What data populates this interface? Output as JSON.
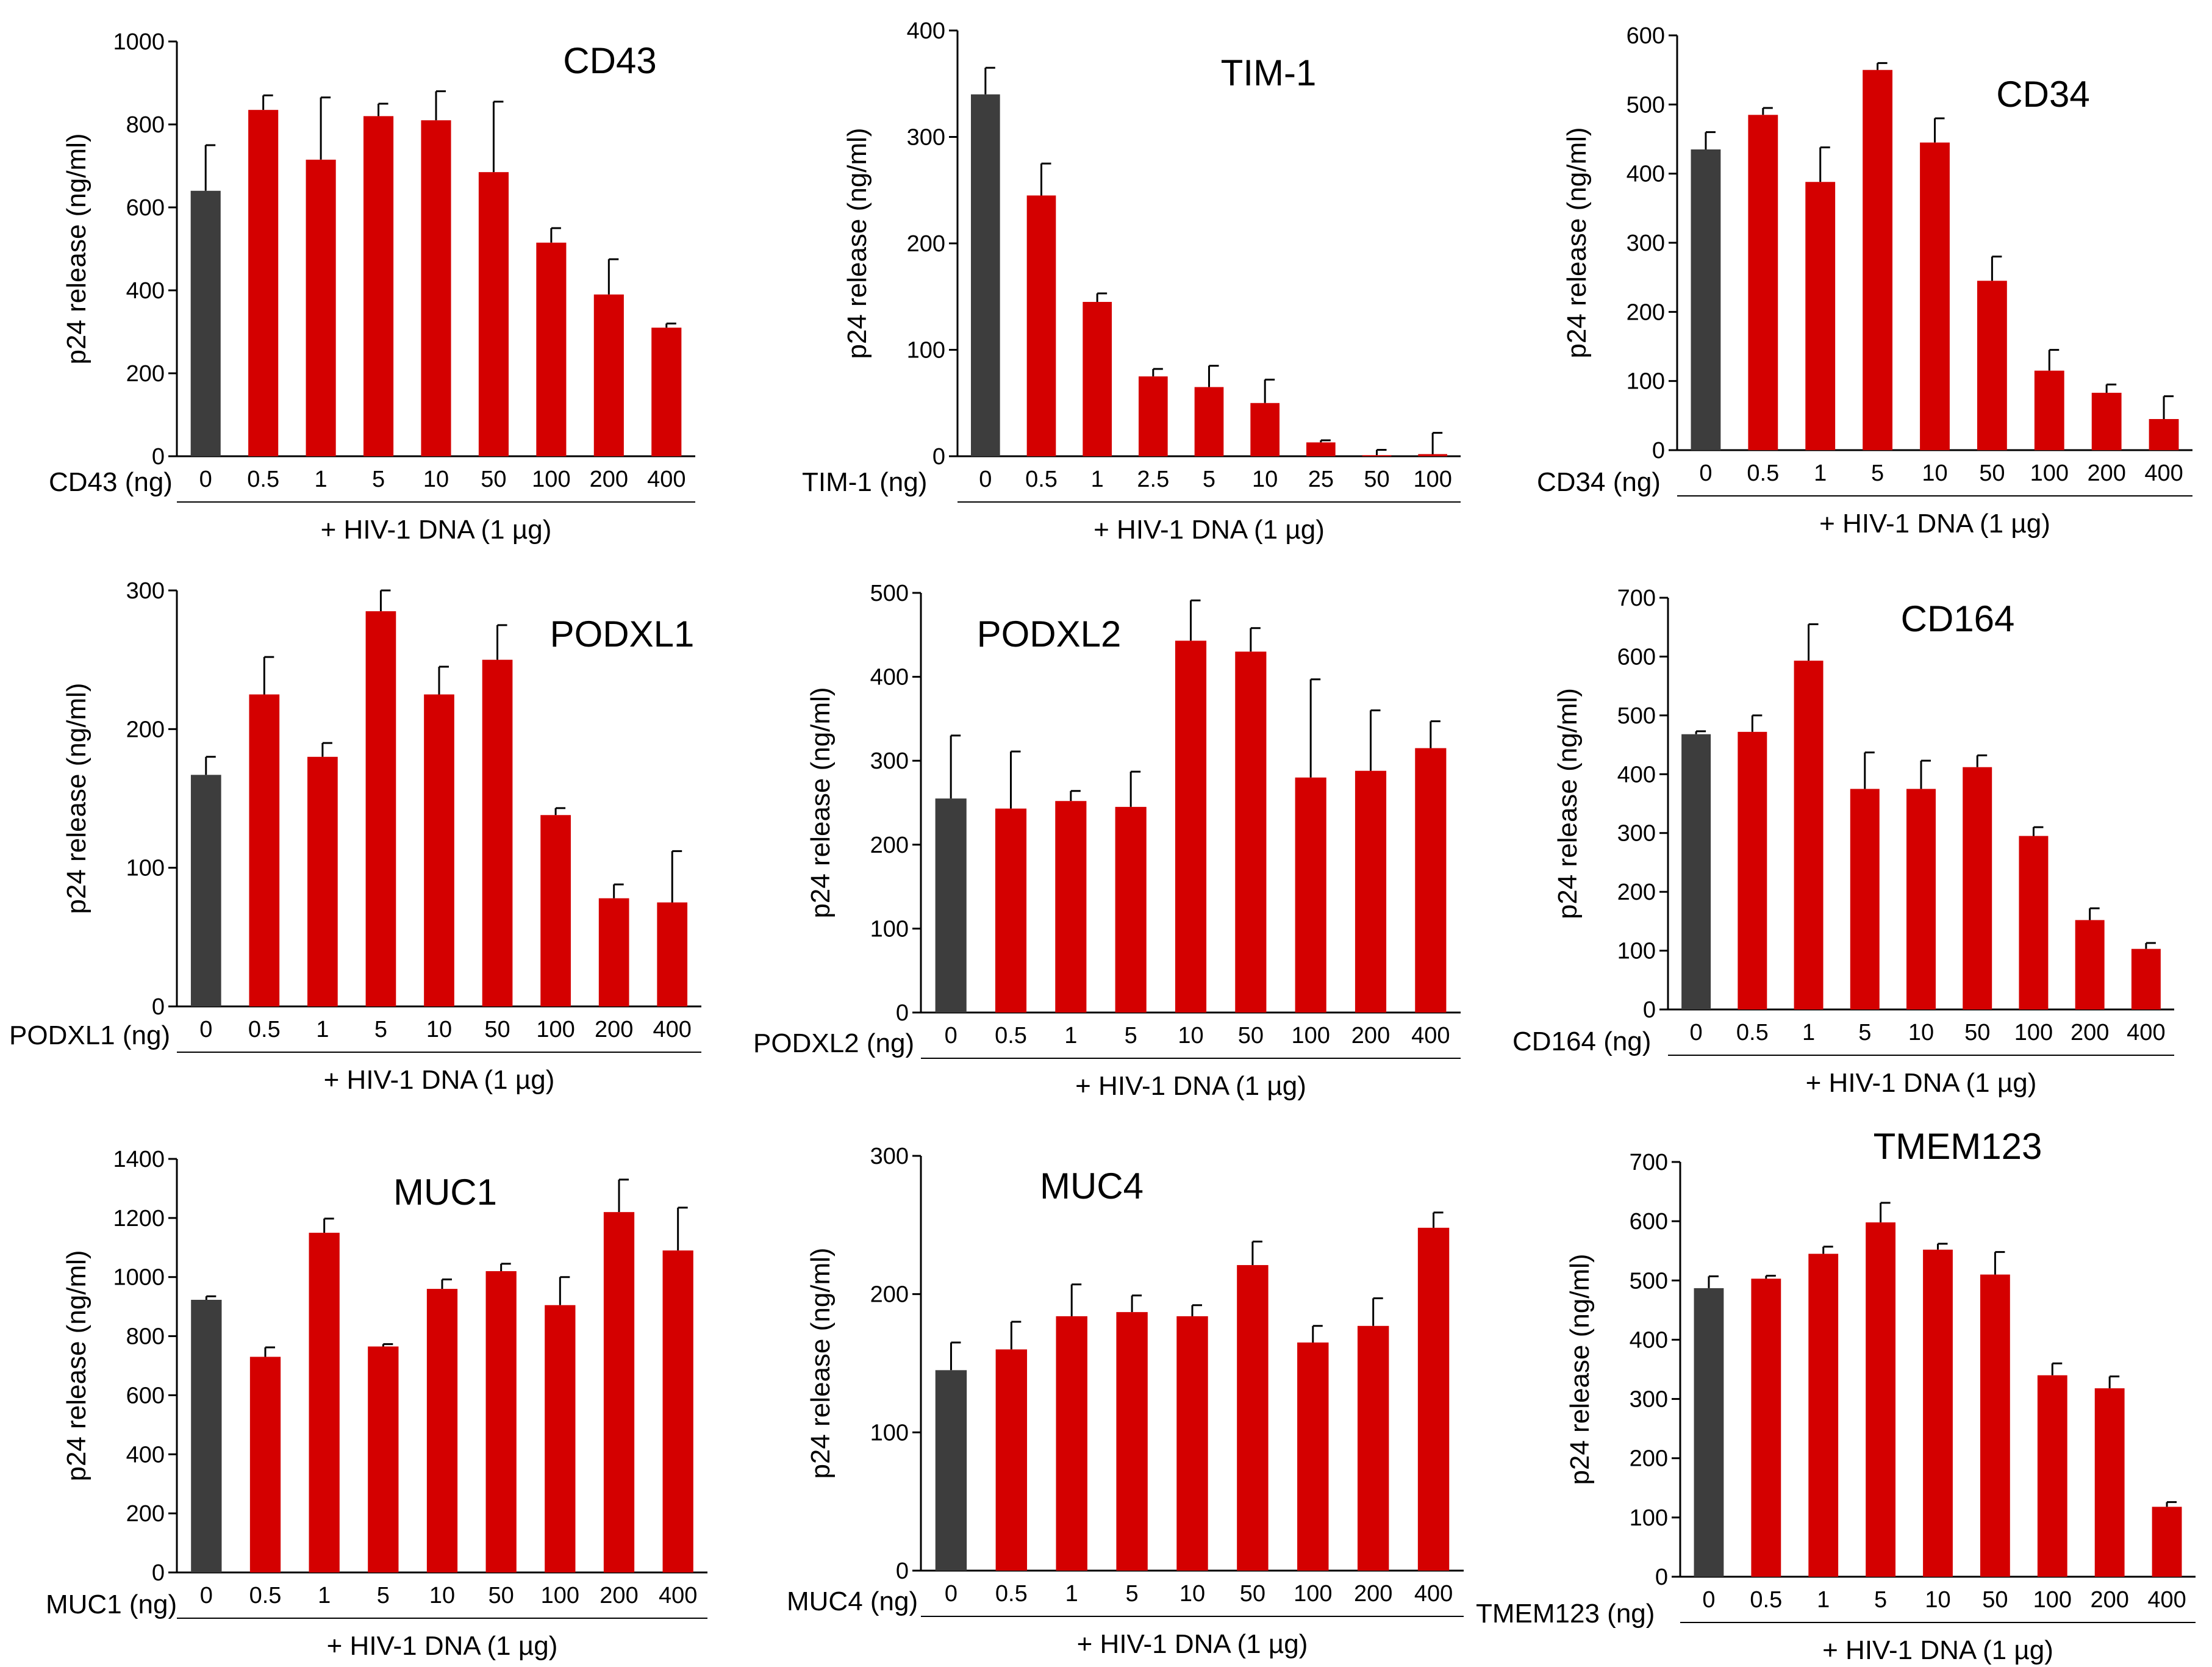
{
  "colors": {
    "control": "#3d3d3d",
    "treated": "#d40000",
    "axis": "#000000"
  },
  "chart_data": [
    {
      "type": "bar",
      "title": "CD43",
      "xlabel": "CD43 (ng)",
      "ylabel": "p24 release (ng/ml)",
      "footnote": "+ HIV-1 DNA  (1 µg)",
      "categories": [
        "0",
        "0.5",
        "1",
        "5",
        "10",
        "50",
        "100",
        "200",
        "400"
      ],
      "values": [
        640,
        835,
        715,
        820,
        810,
        685,
        515,
        390,
        310
      ],
      "errors": [
        110,
        35,
        150,
        30,
        70,
        170,
        35,
        85,
        10
      ],
      "ylim": [
        0,
        1000
      ],
      "yticks": [
        0,
        200,
        400,
        600,
        800,
        1000
      ],
      "grid": false
    },
    {
      "type": "bar",
      "title": "TIM-1",
      "xlabel": "TIM-1 (ng)",
      "ylabel": "p24 release (ng/ml)",
      "footnote": "+ HIV-1 DNA  (1 µg)",
      "categories": [
        "0",
        "0.5",
        "1",
        "2.5",
        "5",
        "10",
        "25",
        "50",
        "100"
      ],
      "values": [
        340,
        245,
        145,
        75,
        65,
        50,
        13,
        1,
        2
      ],
      "errors": [
        25,
        30,
        8,
        7,
        20,
        22,
        2,
        5,
        20
      ],
      "ylim": [
        0,
        400
      ],
      "yticks": [
        0,
        100,
        200,
        300,
        400
      ],
      "grid": false
    },
    {
      "type": "bar",
      "title": "CD34",
      "xlabel": "CD34 (ng)",
      "ylabel": "p24 release (ng/ml)",
      "footnote": "+ HIV-1 DNA  (1 µg)",
      "categories": [
        "0",
        "0.5",
        "1",
        "5",
        "10",
        "50",
        "100",
        "200",
        "400"
      ],
      "values": [
        435,
        485,
        388,
        550,
        445,
        245,
        115,
        83,
        45
      ],
      "errors": [
        25,
        10,
        50,
        10,
        35,
        35,
        30,
        12,
        33
      ],
      "ylim": [
        0,
        600
      ],
      "yticks": [
        0,
        100,
        200,
        300,
        400,
        500,
        600
      ],
      "grid": false
    },
    {
      "type": "bar",
      "title": "PODXL1",
      "xlabel": "PODXL1 (ng)",
      "ylabel": "p24 release (ng/ml)",
      "footnote": "+ HIV-1 DNA  (1 µg)",
      "categories": [
        "0",
        "0.5",
        "1",
        "5",
        "10",
        "50",
        "100",
        "200",
        "400"
      ],
      "values": [
        167,
        225,
        180,
        285,
        225,
        250,
        138,
        78,
        75
      ],
      "errors": [
        13,
        27,
        10,
        15,
        20,
        25,
        5,
        10,
        37
      ],
      "ylim": [
        0,
        300
      ],
      "yticks": [
        0,
        100,
        200,
        300
      ],
      "grid": false
    },
    {
      "type": "bar",
      "title": "PODXL2",
      "xlabel": "PODXL2 (ng)",
      "ylabel": "p24 release (ng/ml)",
      "footnote": "+ HIV-1 DNA  (1 µg)",
      "categories": [
        "0",
        "0.5",
        "1",
        "5",
        "10",
        "50",
        "100",
        "200",
        "400"
      ],
      "values": [
        255,
        243,
        252,
        245,
        443,
        430,
        280,
        288,
        315
      ],
      "errors": [
        75,
        68,
        12,
        42,
        48,
        28,
        117,
        72,
        32
      ],
      "ylim": [
        0,
        500
      ],
      "yticks": [
        0,
        100,
        200,
        300,
        400,
        500
      ],
      "grid": false
    },
    {
      "type": "bar",
      "title": "CD164",
      "xlabel": "CD164 (ng)",
      "ylabel": "p24 release (ng/ml)",
      "footnote": "+ HIV-1 DNA  (1 µg)",
      "categories": [
        "0",
        "0.5",
        "1",
        "5",
        "10",
        "50",
        "100",
        "200",
        "400"
      ],
      "values": [
        468,
        472,
        593,
        375,
        375,
        412,
        295,
        152,
        103
      ],
      "errors": [
        5,
        28,
        62,
        62,
        48,
        20,
        15,
        20,
        10
      ],
      "ylim": [
        0,
        700
      ],
      "yticks": [
        0,
        100,
        200,
        300,
        400,
        500,
        600,
        700
      ],
      "grid": false
    },
    {
      "type": "bar",
      "title": "MUC1",
      "xlabel": "MUC1 (ng)",
      "ylabel": "p24 release (ng/ml)",
      "footnote": "+ HIV-1 DNA  (1 µg)",
      "categories": [
        "0",
        "0.5",
        "1",
        "5",
        "10",
        "50",
        "100",
        "200",
        "400"
      ],
      "values": [
        923,
        730,
        1150,
        765,
        960,
        1020,
        905,
        1220,
        1090
      ],
      "errors": [
        12,
        32,
        48,
        8,
        32,
        25,
        95,
        110,
        145
      ],
      "ylim": [
        0,
        1400
      ],
      "yticks": [
        0,
        200,
        400,
        600,
        800,
        1000,
        1200,
        1400
      ],
      "grid": false
    },
    {
      "type": "bar",
      "title": "MUC4",
      "xlabel": "MUC4 (ng)",
      "ylabel": "p24 release (ng/ml)",
      "footnote": "+ HIV-1 DNA  (1 µg)",
      "categories": [
        "0",
        "0.5",
        "1",
        "5",
        "10",
        "50",
        "100",
        "200",
        "400"
      ],
      "values": [
        145,
        160,
        184,
        187,
        184,
        221,
        165,
        177,
        248
      ],
      "errors": [
        20,
        20,
        23,
        12,
        8,
        17,
        12,
        20,
        11
      ],
      "ylim": [
        0,
        300
      ],
      "yticks": [
        0,
        100,
        200,
        300
      ],
      "grid": false
    },
    {
      "type": "bar",
      "title": "TMEM123",
      "xlabel": "TMEM123 (ng)",
      "ylabel": "p24 release (ng/ml)",
      "footnote": "+ HIV-1 DNA  (1 µg)",
      "categories": [
        "0",
        "0.5",
        "1",
        "5",
        "10",
        "50",
        "100",
        "200",
        "400"
      ],
      "values": [
        487,
        503,
        545,
        598,
        552,
        510,
        340,
        318,
        118
      ],
      "errors": [
        20,
        5,
        12,
        33,
        10,
        38,
        20,
        20,
        8
      ],
      "ylim": [
        0,
        700
      ],
      "yticks": [
        0,
        100,
        200,
        300,
        400,
        500,
        600,
        700
      ],
      "grid": false
    }
  ]
}
